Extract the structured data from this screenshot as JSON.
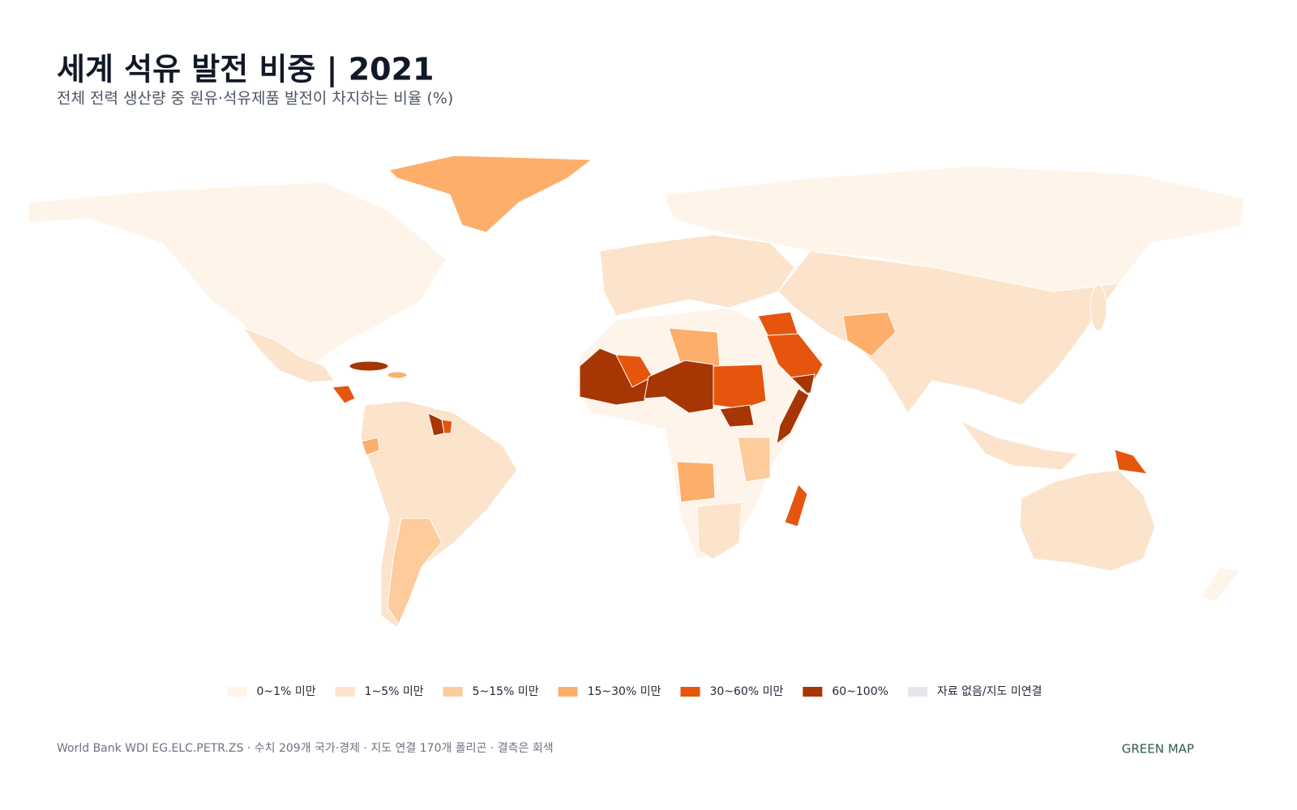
{
  "header": {
    "title": "세계 석유 발전 비중 | 2021",
    "subtitle": "전체 전력 생산량 중 원유·석유제품 발전이 차지하는 비율 (%)"
  },
  "legend": {
    "items": [
      {
        "label": "0~1% 미만",
        "color": "#fff4ea"
      },
      {
        "label": "1~5% 미만",
        "color": "#fce3cc"
      },
      {
        "label": "5~15% 미만",
        "color": "#fdcb9c"
      },
      {
        "label": "15~30% 미만",
        "color": "#fdae6b"
      },
      {
        "label": "30~60% 미만",
        "color": "#e6550d"
      },
      {
        "label": "60~100%",
        "color": "#a63603"
      },
      {
        "label": "자료 없음/지도 미연결",
        "color": "#e5e7eb"
      }
    ]
  },
  "footer": {
    "source": "World Bank WDI EG.ELC.PETR.ZS · 수치 209개 국가·경제 · 지도 연결 170개 폴리곤 · 결측은 회색",
    "brand": "GREEN MAP"
  }
}
